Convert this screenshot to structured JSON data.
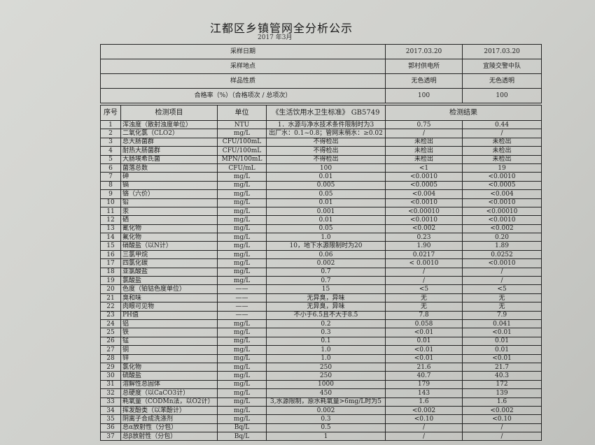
{
  "title": "江都区乡镇管网全分析公示",
  "subtitle": "2017 年3月",
  "summary": [
    {
      "label": "采样日期",
      "v1": "2017.03.20",
      "v2": "2017.03.20"
    },
    {
      "label": "采样地点",
      "v1": "郭村供电所",
      "v2": "宜陵交警中队"
    },
    {
      "label": "样品性质",
      "v1": "无色透明",
      "v2": "无色透明"
    },
    {
      "label": "合格率（%）（合格项次 / 总项次）",
      "v1": "100",
      "v2": "100"
    }
  ],
  "headers": {
    "no": "序号",
    "item": "检测项目",
    "unit": "单位",
    "standard": "《生活饮用水卫生标准》 GB5749",
    "result": "检测结果"
  },
  "rows": [
    [
      "1",
      "浑浊度（散射浊度单位）",
      "NTU",
      "1．水源与净水技术条件限制时为3",
      "0.75",
      "0.44"
    ],
    [
      "2",
      "二氧化氯（CLO2）",
      "mg/L",
      "出厂水：0.1~0.8；管网末梢水：≥0.02",
      "/",
      "/"
    ],
    [
      "3",
      "总大肠菌群",
      "CFU/100mL",
      "不得检出",
      "未检出",
      "未检出"
    ],
    [
      "4",
      "耐热大肠菌群",
      "CFU/100mL",
      "不得检出",
      "未检出",
      "未检出"
    ],
    [
      "5",
      "大肠埃希氏菌",
      "MPN/100mL",
      "不得检出",
      "未检出",
      "未检出"
    ],
    [
      "6",
      "菌落总数",
      "CFU/mL",
      "100",
      "<1",
      "19"
    ],
    [
      "7",
      "砷",
      "mg/L",
      "0.01",
      "<0.0010",
      "<0.0010"
    ],
    [
      "8",
      "镉",
      "mg/L",
      "0.005",
      "<0.0005",
      "<0.0005"
    ],
    [
      "9",
      "铬（六价）",
      "mg/L",
      "0.05",
      "<0.004",
      "<0.004"
    ],
    [
      "10",
      "铅",
      "mg/L",
      "0.01",
      "<0.0010",
      "<0.0010"
    ],
    [
      "11",
      "汞",
      "mg/L",
      "0.001",
      "<0.00010",
      "<0.00010"
    ],
    [
      "12",
      "硒",
      "mg/L",
      "0.01",
      "<0.0010",
      "<0.0010"
    ],
    [
      "13",
      "氰化物",
      "mg/L",
      "0.05",
      "<0.002",
      "<0.002"
    ],
    [
      "14",
      "氟化物",
      "mg/L",
      "1.0",
      "0.23",
      "0.20"
    ],
    [
      "15",
      "硝酸盐（以N计）",
      "mg/L",
      "10，地下水源限制时为20",
      "1.90",
      "1.89"
    ],
    [
      "16",
      "三氯甲烷",
      "mg/L",
      "0.06",
      "0.0217",
      "0.0252"
    ],
    [
      "17",
      "四氯化碳",
      "mg/L",
      "0.002",
      "< 0.0010",
      "<0.0010"
    ],
    [
      "18",
      "亚氯酸盐",
      "mg/L",
      "0.7",
      "/",
      "/"
    ],
    [
      "19",
      "氯酸盐",
      "mg/L",
      "0.7",
      "/",
      "/"
    ],
    [
      "20",
      "色度（铂钴色度单位）",
      "——",
      "15",
      "<5",
      "<5"
    ],
    [
      "21",
      "臭和味",
      "——",
      "无异臭，异味",
      "无",
      "无"
    ],
    [
      "22",
      "肉眼可见物",
      "——",
      "无异臭，异味",
      "无",
      "无"
    ],
    [
      "23",
      "PH值",
      "——",
      "不小于6.5且不大于8.5",
      "7.8",
      "7.9"
    ],
    [
      "24",
      "铝",
      "mg/L",
      "0.2",
      "0.058",
      "0.041"
    ],
    [
      "25",
      "铁",
      "mg/L",
      "0.3",
      "<0.01",
      "<0.01"
    ],
    [
      "26",
      "锰",
      "mg/L",
      "0.1",
      "0.01",
      "0.01"
    ],
    [
      "27",
      "铜",
      "mg/L",
      "1.0",
      "<0.01",
      "0.01"
    ],
    [
      "28",
      "锌",
      "mg/L",
      "1.0",
      "<0.01",
      "<0.01"
    ],
    [
      "29",
      "氯化物",
      "mg/L",
      "250",
      "21.6",
      "21.7"
    ],
    [
      "30",
      "硫酸盐",
      "mg/L",
      "250",
      "40.7",
      "40.3"
    ],
    [
      "31",
      "溶解性总固体",
      "mg/L",
      "1000",
      "179",
      "172"
    ],
    [
      "32",
      "总硬度（以CaCO3计）",
      "mg/L",
      "450",
      "143",
      "139"
    ],
    [
      "33",
      "耗氧量（CODMn法，以O2计）",
      "mg/L",
      "3,水源限制，原水耗氧量>6mg/L时为5",
      "1.6",
      "1.6"
    ],
    [
      "34",
      "挥发酚类（以苯酚计）",
      "mg/L",
      "0.002",
      "<0.002",
      "<0.002"
    ],
    [
      "35",
      "阴离子合成洗涤剂",
      "mg/L",
      "0.3",
      "<0.10",
      "<0.10"
    ],
    [
      "36",
      "总α放射性（分包）",
      "Bq/L",
      "0.5",
      "/",
      "/"
    ],
    [
      "37",
      "总β放射性（分包）",
      "Bq/L",
      "1",
      "/",
      "/"
    ]
  ]
}
